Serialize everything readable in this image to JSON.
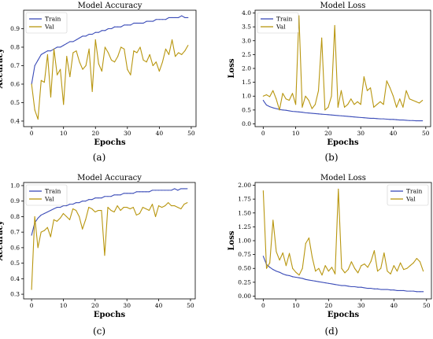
{
  "colors": {
    "train": "#3b4cb8",
    "val": "#b8960f"
  },
  "chart_data": [
    {
      "type": "line",
      "panel_label": "(a)",
      "title": "Model Accuracy",
      "xlabel": "Epochs",
      "ylabel": "Accuracy",
      "xlim": [
        -2.5,
        51.5
      ],
      "ylim": [
        0.37,
        1.0
      ],
      "xticks": [
        "0",
        "10",
        "20",
        "30",
        "40",
        "50"
      ],
      "yticks": [
        "0.4",
        "0.5",
        "0.6",
        "0.7",
        "0.8",
        "0.9"
      ],
      "legend_position": "top-left",
      "x": [
        0,
        1,
        2,
        3,
        4,
        5,
        6,
        7,
        8,
        9,
        10,
        11,
        12,
        13,
        14,
        15,
        16,
        17,
        18,
        19,
        20,
        21,
        22,
        23,
        24,
        25,
        26,
        27,
        28,
        29,
        30,
        31,
        32,
        33,
        34,
        35,
        36,
        37,
        38,
        39,
        40,
        41,
        42,
        43,
        44,
        45,
        46,
        47,
        48,
        49
      ],
      "series": [
        {
          "name": "Train",
          "values": [
            0.6,
            0.7,
            0.73,
            0.76,
            0.77,
            0.78,
            0.78,
            0.79,
            0.8,
            0.8,
            0.81,
            0.82,
            0.83,
            0.83,
            0.84,
            0.85,
            0.86,
            0.86,
            0.87,
            0.87,
            0.88,
            0.88,
            0.89,
            0.89,
            0.9,
            0.9,
            0.91,
            0.91,
            0.91,
            0.92,
            0.92,
            0.92,
            0.93,
            0.93,
            0.93,
            0.93,
            0.94,
            0.94,
            0.94,
            0.95,
            0.95,
            0.95,
            0.95,
            0.96,
            0.96,
            0.96,
            0.96,
            0.97,
            0.96,
            0.96
          ]
        },
        {
          "name": "Val",
          "values": [
            0.6,
            0.46,
            0.41,
            0.62,
            0.61,
            0.76,
            0.53,
            0.79,
            0.65,
            0.68,
            0.49,
            0.75,
            0.64,
            0.77,
            0.78,
            0.72,
            0.68,
            0.7,
            0.79,
            0.56,
            0.84,
            0.71,
            0.67,
            0.8,
            0.77,
            0.73,
            0.72,
            0.75,
            0.8,
            0.79,
            0.68,
            0.65,
            0.78,
            0.77,
            0.8,
            0.73,
            0.72,
            0.76,
            0.7,
            0.72,
            0.67,
            0.72,
            0.79,
            0.76,
            0.84,
            0.75,
            0.77,
            0.76,
            0.78,
            0.81
          ]
        }
      ]
    },
    {
      "type": "line",
      "panel_label": "(b)",
      "title": "Model Loss",
      "xlabel": "Epochs",
      "ylabel": "Loss",
      "xlim": [
        -2.5,
        51.5
      ],
      "ylim": [
        -0.1,
        4.1
      ],
      "xticks": [
        "0",
        "10",
        "20",
        "30",
        "40",
        "50"
      ],
      "yticks": [
        "0.0",
        "0.5",
        "1.0",
        "1.5",
        "2.0",
        "2.5",
        "3.0",
        "3.5",
        "4.0"
      ],
      "legend_position": "top-left",
      "x": [
        0,
        1,
        2,
        3,
        4,
        5,
        6,
        7,
        8,
        9,
        10,
        11,
        12,
        13,
        14,
        15,
        16,
        17,
        18,
        19,
        20,
        21,
        22,
        23,
        24,
        25,
        26,
        27,
        28,
        29,
        30,
        31,
        32,
        33,
        34,
        35,
        36,
        37,
        38,
        39,
        40,
        41,
        42,
        43,
        44,
        45,
        46,
        47,
        48,
        49
      ],
      "series": [
        {
          "name": "Train",
          "values": [
            0.85,
            0.68,
            0.62,
            0.58,
            0.55,
            0.52,
            0.5,
            0.49,
            0.47,
            0.45,
            0.44,
            0.43,
            0.42,
            0.4,
            0.39,
            0.38,
            0.37,
            0.36,
            0.35,
            0.34,
            0.33,
            0.32,
            0.31,
            0.3,
            0.29,
            0.28,
            0.27,
            0.26,
            0.25,
            0.24,
            0.23,
            0.22,
            0.21,
            0.2,
            0.2,
            0.19,
            0.18,
            0.18,
            0.17,
            0.16,
            0.16,
            0.15,
            0.14,
            0.14,
            0.13,
            0.12,
            0.12,
            0.11,
            0.11,
            0.11
          ]
        },
        {
          "name": "Val",
          "values": [
            1.0,
            1.05,
            0.98,
            1.2,
            0.9,
            0.5,
            1.1,
            0.9,
            0.85,
            1.1,
            0.7,
            3.9,
            0.6,
            1.0,
            0.85,
            0.55,
            0.7,
            1.2,
            3.1,
            0.5,
            0.6,
            1.0,
            3.55,
            0.6,
            1.2,
            0.6,
            0.7,
            0.9,
            0.7,
            0.8,
            0.7,
            1.7,
            1.2,
            1.3,
            0.6,
            0.7,
            0.8,
            0.7,
            1.55,
            1.3,
            1.0,
            0.6,
            0.9,
            0.6,
            1.2,
            0.9,
            0.85,
            0.8,
            0.75,
            0.85
          ]
        }
      ]
    },
    {
      "type": "line",
      "panel_label": "(c)",
      "title": "Model Accuracy",
      "xlabel": "Epochs",
      "ylabel": "Accuracy",
      "xlim": [
        -2.5,
        51.5
      ],
      "ylim": [
        0.27,
        1.02
      ],
      "xticks": [
        "0",
        "10",
        "20",
        "30",
        "40",
        "50"
      ],
      "yticks": [
        "0.3",
        "0.4",
        "0.5",
        "0.6",
        "0.7",
        "0.8",
        "0.9",
        "1.0"
      ],
      "legend_position": "top-left",
      "x": [
        0,
        1,
        2,
        3,
        4,
        5,
        6,
        7,
        8,
        9,
        10,
        11,
        12,
        13,
        14,
        15,
        16,
        17,
        18,
        19,
        20,
        21,
        22,
        23,
        24,
        25,
        26,
        27,
        28,
        29,
        30,
        31,
        32,
        33,
        34,
        35,
        36,
        37,
        38,
        39,
        40,
        41,
        42,
        43,
        44,
        45,
        46,
        47,
        48,
        49
      ],
      "series": [
        {
          "name": "Train",
          "values": [
            0.68,
            0.76,
            0.79,
            0.81,
            0.82,
            0.83,
            0.84,
            0.85,
            0.86,
            0.86,
            0.87,
            0.87,
            0.88,
            0.88,
            0.89,
            0.89,
            0.9,
            0.9,
            0.91,
            0.91,
            0.92,
            0.92,
            0.92,
            0.93,
            0.93,
            0.93,
            0.94,
            0.94,
            0.94,
            0.95,
            0.95,
            0.95,
            0.95,
            0.96,
            0.96,
            0.96,
            0.96,
            0.96,
            0.97,
            0.97,
            0.97,
            0.97,
            0.97,
            0.97,
            0.97,
            0.98,
            0.97,
            0.98,
            0.98,
            0.98
          ]
        },
        {
          "name": "Val",
          "values": [
            0.33,
            0.8,
            0.6,
            0.7,
            0.71,
            0.73,
            0.67,
            0.78,
            0.77,
            0.79,
            0.82,
            0.8,
            0.78,
            0.85,
            0.84,
            0.8,
            0.72,
            0.78,
            0.86,
            0.85,
            0.83,
            0.84,
            0.84,
            0.55,
            0.86,
            0.84,
            0.83,
            0.87,
            0.84,
            0.86,
            0.86,
            0.85,
            0.86,
            0.81,
            0.82,
            0.86,
            0.85,
            0.84,
            0.88,
            0.8,
            0.87,
            0.86,
            0.87,
            0.89,
            0.87,
            0.87,
            0.86,
            0.85,
            0.88,
            0.89
          ]
        }
      ]
    },
    {
      "type": "line",
      "panel_label": "(d)",
      "title": "Model Loss",
      "xlabel": "Epochs",
      "ylabel": "Loss",
      "xlim": [
        -2.5,
        51.5
      ],
      "ylim": [
        -0.05,
        2.05
      ],
      "xticks": [
        "0",
        "10",
        "20",
        "30",
        "40",
        "50"
      ],
      "yticks": [
        "0.00",
        "0.25",
        "0.50",
        "0.75",
        "1.00",
        "1.25",
        "1.50",
        "1.75",
        "2.00"
      ],
      "legend_position": "top-right",
      "x": [
        0,
        1,
        2,
        3,
        4,
        5,
        6,
        7,
        8,
        9,
        10,
        11,
        12,
        13,
        14,
        15,
        16,
        17,
        18,
        19,
        20,
        21,
        22,
        23,
        24,
        25,
        26,
        27,
        28,
        29,
        30,
        31,
        32,
        33,
        34,
        35,
        36,
        37,
        38,
        39,
        40,
        41,
        42,
        43,
        44,
        45,
        46,
        47,
        48,
        49
      ],
      "series": [
        {
          "name": "Train",
          "values": [
            0.72,
            0.57,
            0.52,
            0.48,
            0.45,
            0.43,
            0.4,
            0.38,
            0.37,
            0.35,
            0.34,
            0.33,
            0.32,
            0.3,
            0.29,
            0.28,
            0.27,
            0.26,
            0.25,
            0.24,
            0.23,
            0.22,
            0.21,
            0.2,
            0.19,
            0.19,
            0.18,
            0.17,
            0.17,
            0.16,
            0.16,
            0.15,
            0.14,
            0.14,
            0.13,
            0.13,
            0.12,
            0.12,
            0.12,
            0.11,
            0.11,
            0.1,
            0.1,
            0.1,
            0.09,
            0.09,
            0.09,
            0.08,
            0.08,
            0.08
          ]
        },
        {
          "name": "Val",
          "values": [
            1.9,
            0.5,
            0.6,
            1.37,
            0.8,
            0.65,
            0.78,
            0.55,
            0.77,
            0.5,
            0.43,
            0.38,
            0.5,
            0.95,
            1.05,
            0.7,
            0.45,
            0.5,
            0.38,
            0.55,
            0.45,
            0.52,
            0.4,
            1.93,
            0.5,
            0.42,
            0.48,
            0.62,
            0.5,
            0.42,
            0.55,
            0.58,
            0.52,
            0.63,
            0.82,
            0.45,
            0.5,
            0.78,
            0.45,
            0.4,
            0.55,
            0.45,
            0.6,
            0.48,
            0.5,
            0.55,
            0.6,
            0.68,
            0.62,
            0.45
          ]
        }
      ]
    }
  ]
}
